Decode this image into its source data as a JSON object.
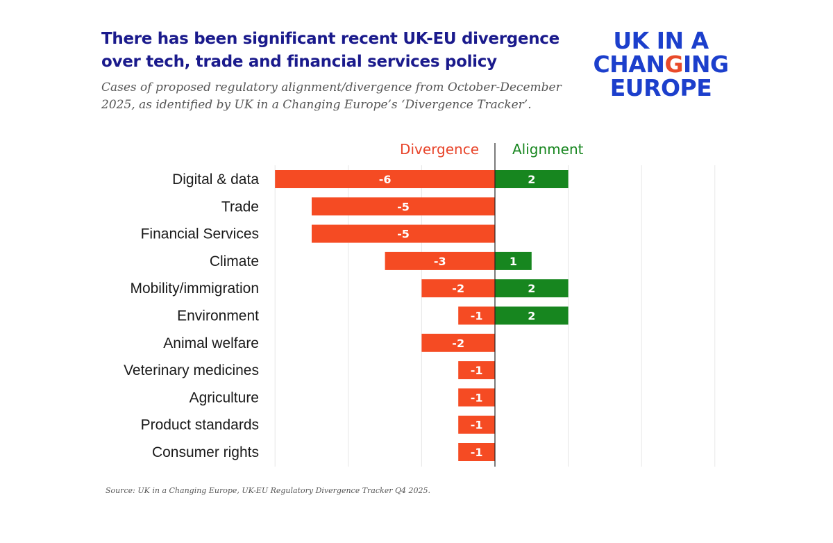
{
  "header": {
    "title": "There has been significant recent UK-EU divergence over tech, trade and financial services policy",
    "subtitle": "Cases of proposed regulatory alignment/divergence from October-December 2025, as identified by UK in a Changing Europe’s ‘Divergence Tracker’.",
    "logo_line1": "UK IN A",
    "logo_line2_pre": "CHAN",
    "logo_line2_accent": "G",
    "logo_line2_post": "ING",
    "logo_line3": "EUROPE"
  },
  "footer": {
    "source": "Source: UK in a Changing Europe, UK-EU Regulatory Divergence Tracker Q4 2025."
  },
  "colors": {
    "divergence": "#f54b23",
    "alignment": "#17861f",
    "divergence_label": "#e8442a",
    "alignment_label": "#17861f",
    "grid": "#e6e6e6",
    "axis": "#222222"
  },
  "chart_data": {
    "type": "bar",
    "orientation": "horizontal",
    "diverging": true,
    "categories": [
      "Digital & data",
      "Trade",
      "Financial Services",
      "Climate",
      "Mobility/immigration",
      "Environment",
      "Animal welfare",
      "Veterinary medicines",
      "Agriculture",
      "Product standards",
      "Consumer rights"
    ],
    "series": [
      {
        "name": "Divergence",
        "values": [
          -6,
          -5,
          -5,
          -3,
          -2,
          -1,
          -2,
          -1,
          -1,
          -1,
          -1
        ]
      },
      {
        "name": "Alignment",
        "values": [
          2,
          0,
          0,
          1,
          2,
          2,
          0,
          0,
          0,
          0,
          0
        ]
      }
    ],
    "xlim": [
      -6,
      6
    ],
    "grid": true,
    "legend_position": "top"
  }
}
